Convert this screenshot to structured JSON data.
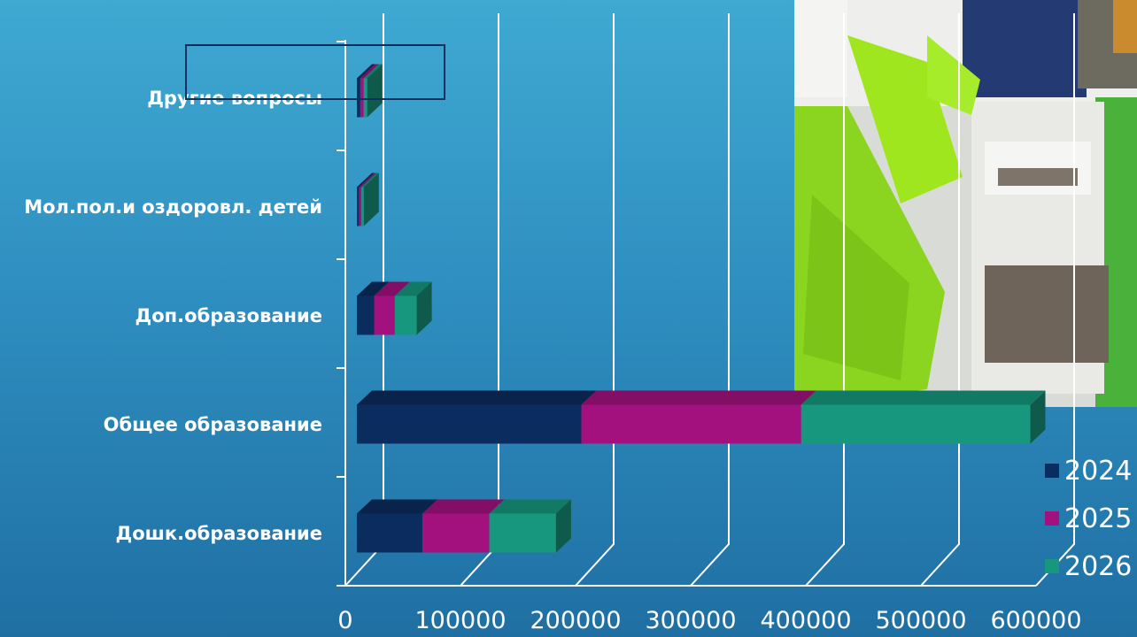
{
  "chart_data": {
    "type": "bar",
    "orientation": "horizontal",
    "stacked": true,
    "three_d": true,
    "categories": [
      "Другие вопросы",
      "Мол.пол.и оздоровл. детей",
      "Доп.образование",
      "Общее  образование",
      "Дошк.образование"
    ],
    "series": [
      {
        "name": "2024",
        "color": "#0b2c5e",
        "values": [
          3000,
          2000,
          15000,
          195000,
          57000
        ]
      },
      {
        "name": "2025",
        "color": "#a3117f",
        "values": [
          3000,
          2000,
          18000,
          191000,
          58000
        ]
      },
      {
        "name": "2026",
        "color": "#17977d",
        "values": [
          3000,
          2000,
          19000,
          199000,
          58000
        ]
      }
    ],
    "xlim": [
      0,
      600000
    ],
    "xticks": [
      "0",
      "100000",
      "200000",
      "300000",
      "400000",
      "500000",
      "600000"
    ],
    "grid": true,
    "legend_position": "right"
  },
  "colors": {
    "background_top": "#3fa9d2",
    "background_bottom": "#1f6fa3",
    "gridline": "#ffffff"
  },
  "decorations": {
    "photo": "photo of green plastic robotics kit parts in a white tray",
    "highlight_box": "outline around first category"
  }
}
